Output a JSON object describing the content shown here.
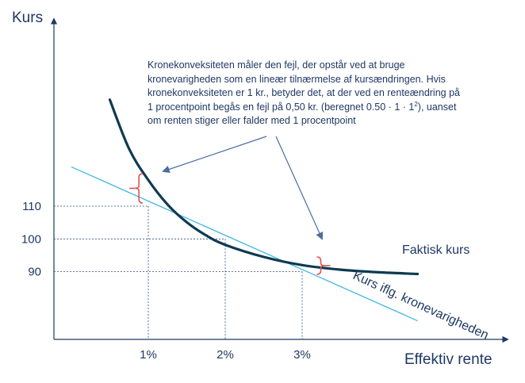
{
  "chart_data": {
    "type": "line",
    "title": "",
    "xlabel": "Effektiv rente",
    "ylabel": "Kurs",
    "x_ticks": [
      {
        "value": 1,
        "label": "1%"
      },
      {
        "value": 2,
        "label": "2%"
      },
      {
        "value": 3,
        "label": "3%"
      }
    ],
    "y_ticks": [
      {
        "value": 110,
        "label": "110"
      },
      {
        "value": 100,
        "label": "100"
      },
      {
        "value": 90,
        "label": "90"
      }
    ],
    "series": [
      {
        "name": "Faktisk kurs",
        "color": "#0e3a52",
        "x": [
          0.5,
          0.75,
          1.0,
          1.25,
          1.5,
          1.75,
          2.0,
          2.5,
          3.0,
          3.5,
          4.0,
          4.5
        ],
        "y": [
          142.5,
          127.5,
          118,
          110.5,
          105.1,
          101.1,
          98.2,
          94.5,
          92.0,
          90.6,
          89.8,
          89.3
        ]
      },
      {
        "name": "Kurs iflg. kronevarigheden",
        "color": "#3fb7e4",
        "x": [
          0.0,
          1.0,
          2.0,
          3.0,
          4.5
        ],
        "y": [
          122,
          110,
          100,
          90,
          75
        ]
      }
    ],
    "annotation": {
      "line1": "Kronekonveksiteten måler den fejl, der opstår ved at bruge",
      "line2": "kronevarigheden som en lineær tilnærmelse af kursændringen. Hvis",
      "line3": "kronekonveksiteten er 1 kr., betyder det, at der ved en renteændring på",
      "line4_pre": "1 procentpoint begås en fejl på 0,50 kr. (beregnet 0.50 · 1 · 1",
      "line4_sup": "2",
      "line4_post": "), uanset",
      "line5": "om renten stiger eller falder med 1 procentpoint"
    },
    "colors": {
      "axis": "#1f3864",
      "text": "#1f3864",
      "arrow": "#4a6ea0",
      "bracket": "#e05252",
      "guide": "#2f4f7f"
    }
  }
}
